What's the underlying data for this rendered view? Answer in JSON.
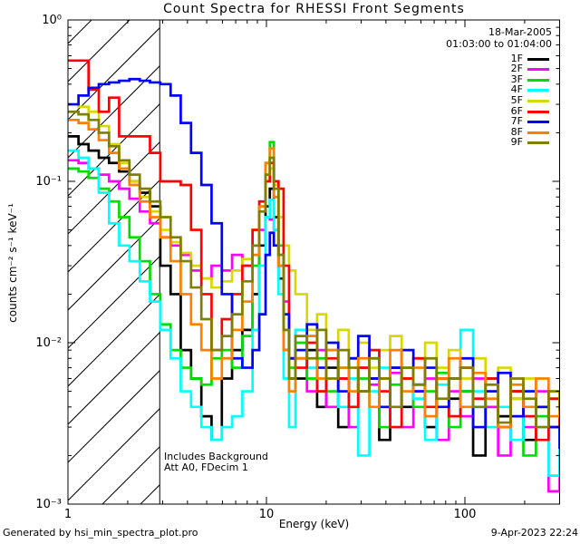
{
  "header": {
    "title": "Count Spectra for RHESSI Front Segments",
    "date": "18-Mar-2005",
    "time_range": "01:03:00 to 01:04:00"
  },
  "annotations": {
    "line1": "Includes Background",
    "line2": "Att A0, FDecim 1"
  },
  "footer": {
    "left": "Generated by hsi_min_spectra_plot.pro",
    "right": "9-Apr-2023 22:24"
  },
  "chart_data": {
    "type": "line",
    "mode": "histogram-steps",
    "title": "Count Spectra for RHESSI Front Segments",
    "xlabel": "Energy (keV)",
    "ylabel": "counts cm⁻² s⁻¹ keV⁻¹",
    "xscale": "log",
    "yscale": "log",
    "xlim": [
      1,
      300
    ],
    "ylim": [
      0.001,
      1
    ],
    "grid": false,
    "legend_position": "top-right",
    "xticks": [
      {
        "value": 1,
        "label": "1"
      },
      {
        "value": 10,
        "label": "10"
      },
      {
        "value": 100,
        "label": "100"
      }
    ],
    "yticks": [
      {
        "value": 1,
        "label": "10⁰"
      },
      {
        "value": 0.1,
        "label": "10⁻¹"
      },
      {
        "value": 0.01,
        "label": "10⁻²"
      },
      {
        "value": 0.001,
        "label": "10⁻³"
      }
    ],
    "hatch_region": {
      "xmin": 1,
      "xmax": 2.9
    },
    "energies": [
      1.0,
      1.13,
      1.27,
      1.43,
      1.61,
      1.81,
      2.04,
      2.3,
      2.59,
      2.92,
      3.29,
      3.7,
      4.17,
      4.7,
      5.29,
      5.96,
      6.71,
      7.56,
      8.51,
      9.2,
      9.9,
      10.4,
      10.9,
      11.5,
      12.2,
      13.0,
      14,
      16,
      18,
      20,
      23,
      26,
      29,
      33,
      37,
      42,
      48,
      55,
      63,
      72,
      83,
      95,
      110,
      127,
      147,
      170,
      197,
      228,
      264,
      300
    ],
    "series": [
      {
        "name": "1F",
        "color": "#000000",
        "values": [
          0.19,
          0.17,
          0.155,
          0.14,
          0.13,
          0.115,
          0.1,
          0.085,
          0.07,
          0.03,
          0.02,
          0.009,
          0.006,
          0.0035,
          0.0025,
          0.006,
          0.009,
          0.012,
          0.02,
          0.04,
          0.07,
          0.09,
          0.06,
          0.025,
          0.009,
          0.006,
          0.006,
          0.009,
          0.004,
          0.007,
          0.003,
          0.008,
          0.005,
          0.006,
          0.0025,
          0.007,
          0.004,
          0.0055,
          0.003,
          0.006,
          0.0045,
          0.005,
          0.002,
          0.004,
          0.0035,
          0.005,
          0.0025,
          0.004,
          0.003,
          0.0015
        ]
      },
      {
        "name": "2F",
        "color": "#FF00FF",
        "values": [
          0.135,
          0.13,
          0.12,
          0.11,
          0.1,
          0.09,
          0.078,
          0.065,
          0.055,
          0.045,
          0.04,
          0.035,
          0.028,
          0.025,
          0.03,
          0.028,
          0.035,
          0.03,
          0.04,
          0.05,
          0.06,
          0.058,
          0.05,
          0.035,
          0.018,
          0.008,
          0.008,
          0.005,
          0.009,
          0.004,
          0.006,
          0.003,
          0.007,
          0.0055,
          0.004,
          0.0065,
          0.003,
          0.005,
          0.006,
          0.0025,
          0.005,
          0.0035,
          0.006,
          0.004,
          0.002,
          0.0045,
          0.003,
          0.005,
          0.0012,
          0.0035
        ]
      },
      {
        "name": "3F",
        "color": "#00DE00",
        "values": [
          0.12,
          0.115,
          0.105,
          0.09,
          0.075,
          0.06,
          0.045,
          0.032,
          0.02,
          0.013,
          0.009,
          0.007,
          0.006,
          0.0055,
          0.008,
          0.009,
          0.007,
          0.011,
          0.03,
          0.07,
          0.13,
          0.175,
          0.1,
          0.04,
          0.012,
          0.007,
          0.01,
          0.006,
          0.008,
          0.005,
          0.007,
          0.004,
          0.006,
          0.008,
          0.003,
          0.0055,
          0.007,
          0.004,
          0.005,
          0.0065,
          0.003,
          0.005,
          0.004,
          0.006,
          0.003,
          0.0045,
          0.002,
          0.0035,
          0.0045,
          0.0025
        ]
      },
      {
        "name": "4F",
        "color": "#00FFFF",
        "values": [
          0.155,
          0.14,
          0.12,
          0.085,
          0.055,
          0.04,
          0.032,
          0.024,
          0.018,
          0.012,
          0.008,
          0.005,
          0.004,
          0.003,
          0.0025,
          0.003,
          0.0035,
          0.005,
          0.012,
          0.03,
          0.06,
          0.077,
          0.05,
          0.02,
          0.006,
          0.003,
          0.012,
          0.007,
          0.005,
          0.009,
          0.004,
          0.006,
          0.002,
          0.005,
          0.007,
          0.003,
          0.006,
          0.0045,
          0.0025,
          0.0055,
          0.0035,
          0.012,
          0.005,
          0.003,
          0.004,
          0.0025,
          0.005,
          0.003,
          0.0015,
          0.004
        ]
      },
      {
        "name": "5F",
        "color": "#D8D800",
        "values": [
          0.3,
          0.29,
          0.27,
          0.22,
          0.17,
          0.13,
          0.1,
          0.08,
          0.065,
          0.05,
          0.042,
          0.036,
          0.03,
          0.025,
          0.022,
          0.024,
          0.028,
          0.033,
          0.05,
          0.07,
          0.1,
          0.12,
          0.095,
          0.06,
          0.04,
          0.028,
          0.02,
          0.012,
          0.015,
          0.009,
          0.012,
          0.008,
          0.01,
          0.007,
          0.009,
          0.011,
          0.006,
          0.008,
          0.01,
          0.007,
          0.009,
          0.006,
          0.008,
          0.005,
          0.007,
          0.0045,
          0.006,
          0.004,
          0.005,
          0.0035
        ]
      },
      {
        "name": "6F",
        "color": "#FF0000",
        "values": [
          0.56,
          0.56,
          0.37,
          0.27,
          0.33,
          0.19,
          0.19,
          0.19,
          0.15,
          0.1,
          0.1,
          0.095,
          0.05,
          0.02,
          0.009,
          0.014,
          0.02,
          0.03,
          0.05,
          0.075,
          0.1,
          0.13,
          0.1,
          0.09,
          0.03,
          0.008,
          0.007,
          0.01,
          0.005,
          0.008,
          0.006,
          0.004,
          0.007,
          0.009,
          0.005,
          0.003,
          0.006,
          0.008,
          0.004,
          0.006,
          0.0035,
          0.007,
          0.0045,
          0.006,
          0.003,
          0.005,
          0.0035,
          0.0025,
          0.0045,
          0.003
        ]
      },
      {
        "name": "7F",
        "color": "#0000FF",
        "values": [
          0.3,
          0.34,
          0.38,
          0.4,
          0.41,
          0.42,
          0.43,
          0.42,
          0.41,
          0.4,
          0.34,
          0.23,
          0.15,
          0.095,
          0.055,
          0.02,
          0.008,
          0.007,
          0.009,
          0.015,
          0.035,
          0.048,
          0.04,
          0.03,
          0.015,
          0.008,
          0.009,
          0.013,
          0.007,
          0.01,
          0.005,
          0.008,
          0.011,
          0.006,
          0.004,
          0.007,
          0.009,
          0.005,
          0.007,
          0.004,
          0.006,
          0.008,
          0.003,
          0.005,
          0.0065,
          0.0035,
          0.005,
          0.004,
          0.003,
          0.0022
        ]
      },
      {
        "name": "8F",
        "color": "#FF8000",
        "values": [
          0.24,
          0.23,
          0.21,
          0.18,
          0.15,
          0.12,
          0.095,
          0.075,
          0.06,
          0.045,
          0.032,
          0.02,
          0.013,
          0.009,
          0.006,
          0.008,
          0.012,
          0.018,
          0.035,
          0.07,
          0.13,
          0.16,
          0.08,
          0.03,
          0.009,
          0.005,
          0.008,
          0.011,
          0.006,
          0.009,
          0.007,
          0.005,
          0.008,
          0.004,
          0.006,
          0.009,
          0.005,
          0.007,
          0.0035,
          0.006,
          0.008,
          0.004,
          0.0065,
          0.0045,
          0.003,
          0.0055,
          0.004,
          0.006,
          0.0035,
          0.0045
        ]
      },
      {
        "name": "9F",
        "color": "#808000",
        "values": [
          0.27,
          0.26,
          0.24,
          0.2,
          0.165,
          0.135,
          0.11,
          0.09,
          0.075,
          0.06,
          0.045,
          0.032,
          0.022,
          0.014,
          0.009,
          0.011,
          0.015,
          0.024,
          0.04,
          0.065,
          0.11,
          0.14,
          0.09,
          0.035,
          0.012,
          0.006,
          0.011,
          0.008,
          0.012,
          0.006,
          0.009,
          0.007,
          0.005,
          0.008,
          0.006,
          0.004,
          0.007,
          0.0055,
          0.008,
          0.0045,
          0.006,
          0.007,
          0.004,
          0.0055,
          0.0032,
          0.006,
          0.0045,
          0.003,
          0.005,
          0.0038
        ]
      }
    ]
  }
}
